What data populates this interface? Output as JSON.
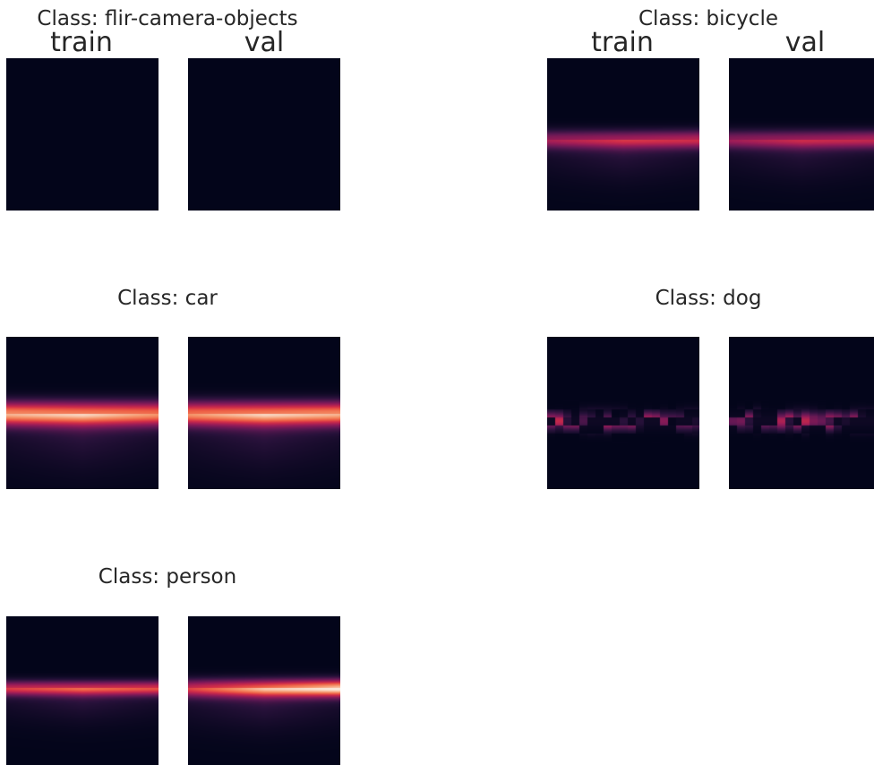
{
  "chart_data": {
    "type": "heatmap",
    "colormap": "rocket",
    "splits": [
      "train",
      "val"
    ],
    "classes": [
      {
        "title": "Class: flir-camera-objects",
        "show_split_labels": true,
        "train": {
          "bands": []
        },
        "val": {
          "bands": []
        }
      },
      {
        "title": "Class: bicycle",
        "show_split_labels": true,
        "train": {
          "bands": [
            {
              "row": 0.53,
              "spread": 0.06,
              "peak": 0.8,
              "left": 0.25,
              "right": 0.45
            }
          ]
        },
        "val": {
          "bands": [
            {
              "row": 0.53,
              "spread": 0.06,
              "peak": 0.72,
              "left": 0.3,
              "right": 0.5
            }
          ]
        }
      },
      {
        "title": "Class: car",
        "show_split_labels": false,
        "train": {
          "bands": [
            {
              "row": 0.5,
              "spread": 0.08,
              "peak": 0.92,
              "left": 0.8,
              "right": 0.7
            }
          ]
        },
        "val": {
          "bands": [
            {
              "row": 0.5,
              "spread": 0.08,
              "peak": 0.92,
              "left": 0.7,
              "right": 0.8
            }
          ]
        }
      },
      {
        "title": "Class: dog",
        "show_split_labels": false,
        "train": {
          "bands": [
            {
              "row": 0.55,
              "spread": 0.06,
              "peak": 0.55,
              "left": 0.45,
              "right": 0.55
            }
          ]
        },
        "val": {
          "bands": [
            {
              "row": 0.55,
              "spread": 0.06,
              "peak": 0.55,
              "left": 0.45,
              "right": 0.55
            }
          ]
        }
      },
      {
        "title": "Class: person",
        "show_split_labels": false,
        "train": {
          "bands": [
            {
              "row": 0.48,
              "spread": 0.05,
              "peak": 0.85,
              "left": 0.45,
              "right": 0.55
            }
          ]
        },
        "val": {
          "bands": [
            {
              "row": 0.48,
              "spread": 0.06,
              "peak": 0.95,
              "left": 0.35,
              "right": 0.95
            }
          ]
        }
      }
    ]
  }
}
